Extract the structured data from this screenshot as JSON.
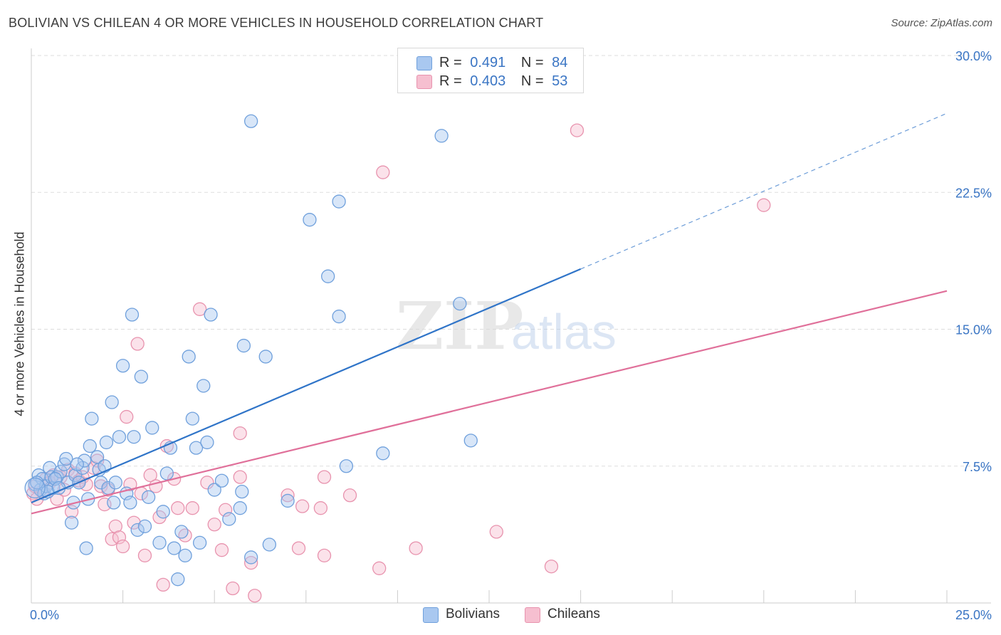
{
  "chart_data": {
    "type": "scatter",
    "title": "BOLIVIAN VS CHILEAN 4 OR MORE VEHICLES IN HOUSEHOLD CORRELATION CHART",
    "source": "Source: ZipAtlas.com",
    "ylabel": "4 or more Vehicles in Household",
    "xlabel": "",
    "xlim": [
      0,
      25
    ],
    "ylim": [
      0,
      30
    ],
    "x_tick_labels": [
      "0.0%",
      "25.0%"
    ],
    "y_tick_labels": [
      "7.5%",
      "15.0%",
      "22.5%",
      "30.0%"
    ],
    "y_ticks": [
      7.5,
      15.0,
      22.5,
      30.0
    ],
    "watermark": {
      "zip": "ZIP",
      "atlas": "atlas"
    },
    "colors": {
      "bolivians_fill": "#a9c8f0",
      "bolivians_stroke": "#6fa0dc",
      "bolivians_line": "#2f74c8",
      "chileans_fill": "#f6bfd0",
      "chileans_stroke": "#e893ae",
      "chileans_line": "#e0709a",
      "value_text": "#3a75c4",
      "axis_label": "#3a75c4"
    },
    "legend": {
      "r_label": "R =",
      "n_label": "N =",
      "bolivians": {
        "r": "0.491",
        "n": "84"
      },
      "chileans": {
        "r": "0.403",
        "n": "53"
      }
    },
    "series": [
      {
        "name": "Bolivians",
        "r": 0.491,
        "n": 84,
        "trend": {
          "x0": 0,
          "y0": 5.5,
          "x1": 15,
          "y1": 18.3,
          "dash_to_x": 25
        },
        "points": [
          [
            0.1,
            6.5
          ],
          [
            0.2,
            7.0
          ],
          [
            0.25,
            6.2
          ],
          [
            0.3,
            6.8
          ],
          [
            0.35,
            6.0
          ],
          [
            0.4,
            6.4
          ],
          [
            0.5,
            7.4
          ],
          [
            0.55,
            6.9
          ],
          [
            0.6,
            6.3
          ],
          [
            0.7,
            6.9
          ],
          [
            0.8,
            7.2
          ],
          [
            0.9,
            7.6
          ],
          [
            0.95,
            7.9
          ],
          [
            1.0,
            6.6
          ],
          [
            1.1,
            4.4
          ],
          [
            1.15,
            5.5
          ],
          [
            1.2,
            7.0
          ],
          [
            1.3,
            6.6
          ],
          [
            1.4,
            7.4
          ],
          [
            1.45,
            7.8
          ],
          [
            1.5,
            3.0
          ],
          [
            1.55,
            5.7
          ],
          [
            1.6,
            8.6
          ],
          [
            1.65,
            10.1
          ],
          [
            1.8,
            8.0
          ],
          [
            1.85,
            7.3
          ],
          [
            1.9,
            6.6
          ],
          [
            2.0,
            7.5
          ],
          [
            2.05,
            8.8
          ],
          [
            2.1,
            6.3
          ],
          [
            2.2,
            11.0
          ],
          [
            2.25,
            5.5
          ],
          [
            2.3,
            6.6
          ],
          [
            2.4,
            9.1
          ],
          [
            2.5,
            13.0
          ],
          [
            2.6,
            6.0
          ],
          [
            2.7,
            5.5
          ],
          [
            2.75,
            15.8
          ],
          [
            2.8,
            9.1
          ],
          [
            2.9,
            4.0
          ],
          [
            3.0,
            12.4
          ],
          [
            3.1,
            4.2
          ],
          [
            3.2,
            5.8
          ],
          [
            3.3,
            9.6
          ],
          [
            3.5,
            3.3
          ],
          [
            3.6,
            5.0
          ],
          [
            3.7,
            7.1
          ],
          [
            3.8,
            8.5
          ],
          [
            3.9,
            3.0
          ],
          [
            4.0,
            1.3
          ],
          [
            4.1,
            3.9
          ],
          [
            4.2,
            2.6
          ],
          [
            4.3,
            13.5
          ],
          [
            4.4,
            10.1
          ],
          [
            4.5,
            8.5
          ],
          [
            4.6,
            3.3
          ],
          [
            4.7,
            11.9
          ],
          [
            4.8,
            8.8
          ],
          [
            4.9,
            15.8
          ],
          [
            5.0,
            6.2
          ],
          [
            5.2,
            6.7
          ],
          [
            5.4,
            4.6
          ],
          [
            5.7,
            5.2
          ],
          [
            5.75,
            6.1
          ],
          [
            5.8,
            14.1
          ],
          [
            6.0,
            26.4
          ],
          [
            6.0,
            2.5
          ],
          [
            6.4,
            13.5
          ],
          [
            6.5,
            3.2
          ],
          [
            7.0,
            5.6
          ],
          [
            7.6,
            21.0
          ],
          [
            8.1,
            17.9
          ],
          [
            8.4,
            15.7
          ],
          [
            8.4,
            22.0
          ],
          [
            8.6,
            7.5
          ],
          [
            9.6,
            8.2
          ],
          [
            11.2,
            25.6
          ],
          [
            11.7,
            16.4
          ],
          [
            12.0,
            8.9
          ],
          [
            0.15,
            6.6
          ],
          [
            0.45,
            6.1
          ],
          [
            0.65,
            6.8
          ],
          [
            0.75,
            6.3
          ],
          [
            1.25,
            7.6
          ]
        ]
      },
      {
        "name": "Chileans",
        "r": 0.403,
        "n": 53,
        "trend": {
          "x0": 0,
          "y0": 4.9,
          "x1": 25,
          "y1": 17.1
        },
        "points": [
          [
            0.05,
            6.0
          ],
          [
            0.1,
            6.4
          ],
          [
            0.15,
            5.7
          ],
          [
            0.3,
            6.1
          ],
          [
            0.4,
            6.8
          ],
          [
            0.5,
            6.6
          ],
          [
            0.6,
            7.0
          ],
          [
            0.7,
            5.7
          ],
          [
            0.8,
            6.9
          ],
          [
            0.9,
            6.2
          ],
          [
            1.0,
            7.3
          ],
          [
            1.1,
            5.0
          ],
          [
            1.2,
            7.1
          ],
          [
            1.3,
            6.7
          ],
          [
            1.4,
            6.9
          ],
          [
            1.5,
            6.5
          ],
          [
            1.7,
            7.4
          ],
          [
            1.8,
            7.8
          ],
          [
            1.9,
            6.4
          ],
          [
            2.0,
            5.4
          ],
          [
            2.1,
            6.2
          ],
          [
            2.2,
            3.5
          ],
          [
            2.3,
            4.2
          ],
          [
            2.4,
            3.6
          ],
          [
            2.5,
            3.1
          ],
          [
            2.6,
            10.2
          ],
          [
            2.7,
            6.5
          ],
          [
            2.8,
            4.4
          ],
          [
            2.9,
            14.2
          ],
          [
            3.0,
            6.0
          ],
          [
            3.1,
            2.6
          ],
          [
            3.25,
            7.0
          ],
          [
            3.4,
            6.4
          ],
          [
            3.5,
            4.7
          ],
          [
            3.6,
            1.0
          ],
          [
            3.7,
            8.6
          ],
          [
            3.9,
            6.8
          ],
          [
            4.0,
            5.2
          ],
          [
            4.2,
            3.7
          ],
          [
            4.4,
            5.2
          ],
          [
            4.6,
            16.1
          ],
          [
            4.8,
            6.6
          ],
          [
            5.0,
            4.3
          ],
          [
            5.2,
            2.9
          ],
          [
            5.3,
            5.1
          ],
          [
            5.5,
            0.8
          ],
          [
            5.7,
            6.9
          ],
          [
            6.1,
            0.4
          ],
          [
            7.0,
            5.9
          ],
          [
            7.4,
            5.3
          ],
          [
            8.0,
            2.6
          ],
          [
            9.6,
            23.6
          ],
          [
            14.9,
            25.9
          ]
        ]
      }
    ],
    "extra_chilean_points": [
      [
        5.7,
        9.3
      ],
      [
        6.0,
        2.2
      ],
      [
        7.3,
        3.0
      ],
      [
        7.9,
        5.2
      ],
      [
        8.0,
        6.9
      ],
      [
        8.7,
        5.9
      ],
      [
        9.5,
        1.9
      ],
      [
        10.5,
        3.0
      ],
      [
        12.7,
        3.9
      ],
      [
        14.2,
        2.0
      ],
      [
        20.0,
        21.8
      ]
    ]
  }
}
